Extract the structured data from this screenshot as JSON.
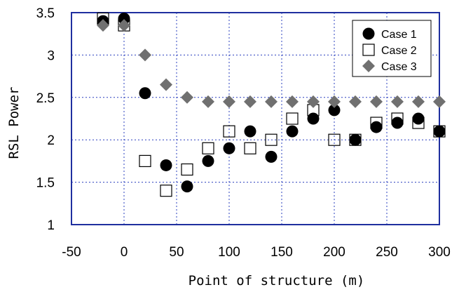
{
  "chart_data": {
    "type": "scatter",
    "title": "",
    "xlabel": "Point of structure (m)",
    "ylabel": "RSL Power",
    "xlim": [
      -50,
      300
    ],
    "ylim": [
      1,
      3.5
    ],
    "xticks": [
      "-50",
      "0",
      "50",
      "100",
      "150",
      "200",
      "250",
      "300"
    ],
    "yticks": [
      "1",
      "1.5",
      "2",
      "2.5",
      "3",
      "3.5"
    ],
    "grid": "dotted, blue",
    "legend_position": "top-right",
    "series": [
      {
        "name": "Case  1",
        "marker": "filled-circle",
        "color": "#000000",
        "points": [
          [
            -20,
            3.4
          ],
          [
            0,
            3.43
          ],
          [
            20,
            2.55
          ],
          [
            40,
            1.7
          ],
          [
            60,
            1.45
          ],
          [
            80,
            1.75
          ],
          [
            100,
            1.9
          ],
          [
            120,
            2.1
          ],
          [
            140,
            1.8
          ],
          [
            160,
            2.1
          ],
          [
            180,
            2.25
          ],
          [
            200,
            2.35
          ],
          [
            220,
            2.0
          ],
          [
            240,
            2.15
          ],
          [
            260,
            2.2
          ],
          [
            280,
            2.25
          ],
          [
            300,
            2.1
          ]
        ]
      },
      {
        "name": "Case  2",
        "marker": "open-square",
        "color": "#000000",
        "points": [
          [
            -20,
            3.43
          ],
          [
            0,
            3.35
          ],
          [
            20,
            1.75
          ],
          [
            40,
            1.4
          ],
          [
            60,
            1.65
          ],
          [
            80,
            1.9
          ],
          [
            100,
            2.1
          ],
          [
            120,
            1.9
          ],
          [
            140,
            2.0
          ],
          [
            160,
            2.25
          ],
          [
            180,
            2.35
          ],
          [
            200,
            2.0
          ],
          [
            220,
            2.0
          ],
          [
            240,
            2.2
          ],
          [
            260,
            2.25
          ],
          [
            280,
            2.2
          ],
          [
            300,
            2.1
          ]
        ]
      },
      {
        "name": "Case  3",
        "marker": "diamond",
        "color": "#707070",
        "points": [
          [
            -20,
            3.35
          ],
          [
            0,
            3.35
          ],
          [
            20,
            3.0
          ],
          [
            40,
            2.65
          ],
          [
            60,
            2.5
          ],
          [
            80,
            2.45
          ],
          [
            100,
            2.45
          ],
          [
            120,
            2.45
          ],
          [
            140,
            2.45
          ],
          [
            160,
            2.45
          ],
          [
            180,
            2.45
          ],
          [
            200,
            2.45
          ],
          [
            220,
            2.45
          ],
          [
            240,
            2.45
          ],
          [
            260,
            2.45
          ],
          [
            280,
            2.45
          ],
          [
            300,
            2.45
          ]
        ]
      }
    ]
  }
}
